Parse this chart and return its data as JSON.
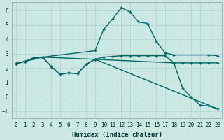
{
  "xlabel": "Humidex (Indice chaleur)",
  "background_color": "#cce8e4",
  "line_color": "#006666",
  "grid_color": "#b8d8d4",
  "xlim": [
    -0.5,
    23.5
  ],
  "ylim": [
    -1.5,
    6.6
  ],
  "yticks": [
    -1,
    0,
    1,
    2,
    3,
    4,
    5,
    6
  ],
  "xticks": [
    0,
    1,
    2,
    3,
    4,
    5,
    6,
    7,
    8,
    9,
    10,
    11,
    12,
    13,
    14,
    15,
    16,
    17,
    18,
    19,
    20,
    21,
    22,
    23
  ],
  "curve1_x": [
    0,
    1,
    2,
    3,
    9,
    10,
    11,
    12,
    13,
    14,
    15,
    16,
    17,
    18,
    22,
    23
  ],
  "curve1_y": [
    2.3,
    2.45,
    2.7,
    2.75,
    3.2,
    4.7,
    5.4,
    6.2,
    5.9,
    5.2,
    5.1,
    3.85,
    3.05,
    2.9,
    2.9,
    2.85
  ],
  "curve2_x": [
    0,
    1,
    2,
    3,
    9,
    10,
    11,
    12,
    13,
    14,
    15,
    16,
    17,
    18,
    19,
    20,
    21,
    22,
    23
  ],
  "curve2_y": [
    2.3,
    2.45,
    2.7,
    2.75,
    2.6,
    2.75,
    2.8,
    2.85,
    2.85,
    2.85,
    2.85,
    2.85,
    2.85,
    2.35,
    2.35,
    2.35,
    2.35,
    2.35,
    2.35
  ],
  "curve3_x": [
    0,
    1,
    2,
    3,
    4,
    5,
    6,
    7,
    8,
    9,
    18,
    19,
    20,
    21,
    22,
    23
  ],
  "curve3_y": [
    2.3,
    2.45,
    2.7,
    2.75,
    2.1,
    1.55,
    1.65,
    1.6,
    2.25,
    2.6,
    2.35,
    0.6,
    -0.05,
    -0.6,
    -0.65,
    -0.85
  ],
  "curve4_x": [
    0,
    3,
    4,
    5,
    6,
    7,
    8,
    9,
    23
  ],
  "curve4_y": [
    2.3,
    2.75,
    2.1,
    1.55,
    1.65,
    1.6,
    2.25,
    2.6,
    -0.85
  ]
}
